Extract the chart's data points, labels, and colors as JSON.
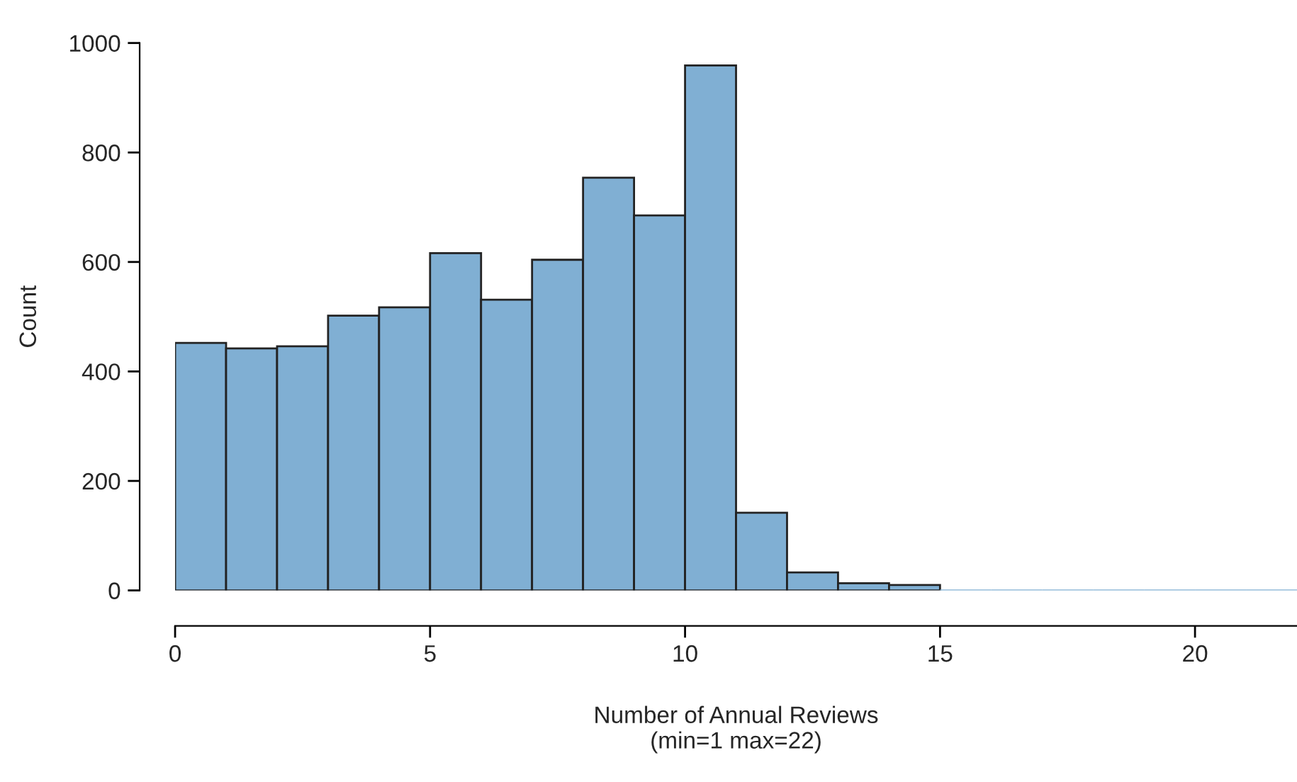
{
  "chart_data": {
    "type": "histogram",
    "xlabel": "Number of Annual Reviews\n(min=1 max=22)",
    "ylabel": "Count",
    "bins": [
      0,
      1,
      2,
      3,
      4,
      5,
      6,
      7,
      8,
      9,
      10,
      11,
      12,
      13,
      14,
      15,
      16,
      17,
      18,
      19,
      20,
      21,
      22
    ],
    "values": [
      452,
      442,
      446,
      502,
      517,
      616,
      531,
      604,
      754,
      685,
      959,
      142,
      33,
      13,
      10,
      0,
      0,
      0,
      0,
      0,
      0,
      0
    ],
    "color": "#80afd3",
    "xlim": [
      0,
      22
    ],
    "xticks": [
      0,
      5,
      10,
      15,
      20
    ],
    "ylim": [
      0,
      1000
    ],
    "yticks": [
      0,
      200,
      400,
      600,
      800,
      1000
    ],
    "grid": false
  }
}
